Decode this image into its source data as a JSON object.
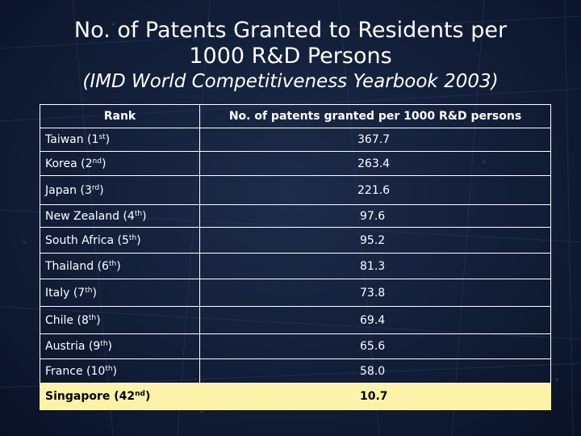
{
  "slide": {
    "title_line1": "No. of Patents Granted to Residents per",
    "title_line2": "1000 R&D Persons",
    "subtitle": "(IMD World Competitiveness Yearbook 2003)"
  },
  "table": {
    "headers": {
      "rank": "Rank",
      "value": "No. of patents granted per 1000 R&D persons"
    },
    "rows": [
      {
        "country": "Taiwan",
        "rank": "1",
        "suffix": "st",
        "value": "367.7"
      },
      {
        "country": "Korea",
        "rank": "2",
        "suffix": "nd",
        "value": "263.4"
      },
      {
        "country": "Japan",
        "rank": "3",
        "suffix": "rd",
        "value": "221.6"
      },
      {
        "country": "New Zealand",
        "rank": "4",
        "suffix": "th",
        "value": "97.6"
      },
      {
        "country": "South Africa",
        "rank": "5",
        "suffix": "th",
        "value": "95.2"
      },
      {
        "country": "Thailand",
        "rank": "6",
        "suffix": "th",
        "value": "81.3"
      },
      {
        "country": "Italy",
        "rank": "7",
        "suffix": "th",
        "value": "73.8"
      },
      {
        "country": "Chile",
        "rank": "8",
        "suffix": "th",
        "value": "69.4"
      },
      {
        "country": "Austria",
        "rank": "9",
        "suffix": "th",
        "value": "65.6"
      },
      {
        "country": "France",
        "rank": "10",
        "suffix": "th",
        "value": "58.0"
      },
      {
        "country": "Singapore",
        "rank": "42",
        "suffix": "nd",
        "value": "10.7",
        "highlight": true
      }
    ]
  },
  "colors": {
    "highlight_background": "#fdf3a8",
    "slide_background": "#0f1a30"
  }
}
